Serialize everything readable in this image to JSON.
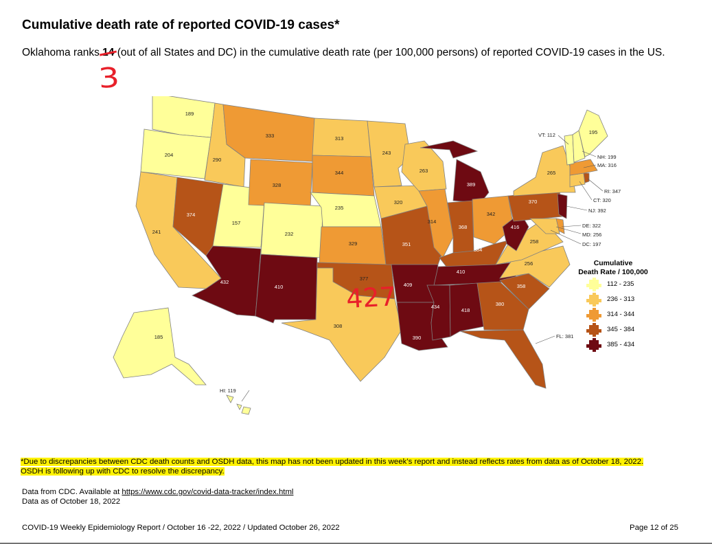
{
  "header": {
    "title": "Cumulative death rate of reported COVID-19 cases*",
    "desc_prefix": "Oklahoma ranks",
    "rank_struck": "14",
    "rank_new": "3",
    "desc_suffix": " (out of all States and DC) in the cumulative death rate (per 100,000 persons) of reported COVID-19 cases in the US."
  },
  "map": {
    "ok_handwritten": "427",
    "states": {
      "WA": "189",
      "OR": "204",
      "CA": "241",
      "NV": "374",
      "ID": "290",
      "UT": "157",
      "AZ": "432",
      "MT": "333",
      "WY": "328",
      "CO": "232",
      "NM": "410",
      "ND": "313",
      "SD": "344",
      "NE": "235",
      "KS": "329",
      "OK": "377",
      "TX": "308",
      "MN": "243",
      "IA": "320",
      "MO": "351",
      "AR": "409",
      "LA": "390",
      "WI": "263",
      "IL": "314",
      "MI": "389",
      "IN": "368",
      "OH": "342",
      "KY": "384",
      "TN": "410",
      "MS": "434",
      "AL": "418",
      "GA": "380",
      "SC": "358",
      "NC": "256",
      "VA": "258",
      "WV": "416",
      "PA": "370",
      "NY": "265",
      "ME": "195",
      "AK": "185"
    },
    "callouts": {
      "VT": "VT: 112",
      "NH": "NH: 199",
      "MA": "MA: 316",
      "RI": "RI: 347",
      "CT": "CT: 320",
      "NJ": "NJ: 392",
      "DE": "DE: 322",
      "MD": "MD: 256",
      "DC": "DC: 197",
      "FL": "FL: 381",
      "HI": "HI: 119"
    }
  },
  "legend": {
    "title_line1": "Cumulative",
    "title_line2": "Death Rate / 100,000",
    "items": [
      {
        "label": "112 - 235",
        "color": "#ffff99"
      },
      {
        "label": "236 - 313",
        "color": "#f9c95a"
      },
      {
        "label": "314 - 344",
        "color": "#ef9a34"
      },
      {
        "label": "345 - 384",
        "color": "#b65418"
      },
      {
        "label": "385 - 434",
        "color": "#6e0a12"
      }
    ]
  },
  "footnote": {
    "line1": "*Due to discrepancies between CDC death counts and OSDH data, this map has not been updated in this week’s report and instead reflects rates from data as of October 18, 2022.",
    "line2": "OSDH is following up with CDC to resolve the discrepancy."
  },
  "source": {
    "prefix": "Data from CDC. Available at ",
    "link": "https://www.cdc.gov/covid-data-tracker/index.html",
    "asof": "Data as of October 18, 2022"
  },
  "footer": {
    "left": "COVID-19 Weekly Epidemiology Report / October 16 -22, 2022 / Updated October 26, 2022",
    "right": "Page 12 of 25"
  }
}
